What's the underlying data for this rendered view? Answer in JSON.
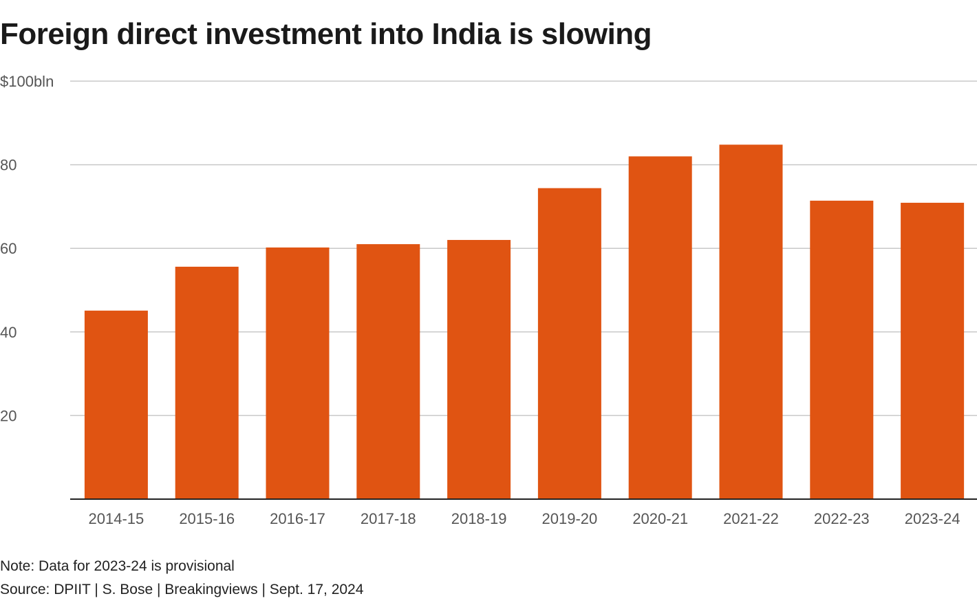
{
  "title": "Foreign direct investment into India is slowing",
  "note": "Note: Data for 2023-24 is provisional",
  "source": "Source: DPIIT | S. Bose | Breakingviews | Sept. 17, 2024",
  "colors": {
    "bar": "#e05412",
    "grid": "#c8c8c8",
    "axis": "#222222",
    "tick_text": "#555555"
  },
  "chart_data": {
    "type": "bar",
    "title": "Foreign direct investment into India is slowing",
    "xlabel": "",
    "ylabel": "",
    "categories": [
      "2014-15",
      "2015-16",
      "2016-17",
      "2017-18",
      "2018-19",
      "2019-20",
      "2020-21",
      "2021-22",
      "2022-23",
      "2023-24"
    ],
    "values": [
      45.1,
      55.6,
      60.2,
      61.0,
      62.0,
      74.4,
      82.0,
      84.8,
      71.4,
      70.9
    ],
    "ylim": [
      0,
      100
    ],
    "yticks": [
      20,
      40,
      60,
      80,
      100
    ],
    "ytick_labels": [
      "20",
      "40",
      "60",
      "80",
      "$100bln"
    ],
    "grid": true,
    "legend": "none"
  }
}
